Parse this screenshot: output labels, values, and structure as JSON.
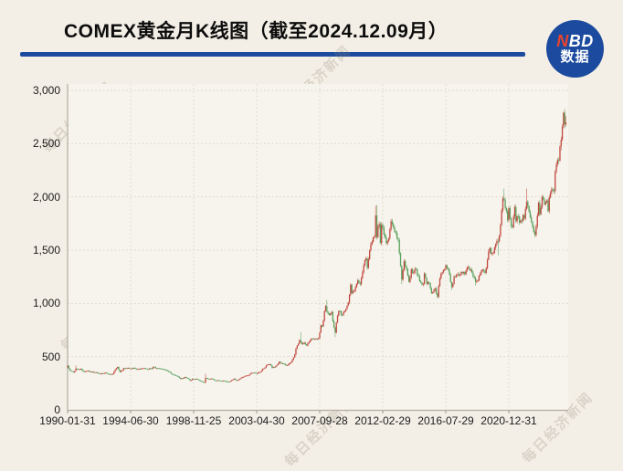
{
  "page": {
    "background": "#f3efe6",
    "plot_background": "#f7f4ed"
  },
  "header": {
    "title": "COMEX黄金月K线图（截至2024.12.09月）",
    "underline_color": "#1b4a9e",
    "logo": {
      "n": "N",
      "bd": "BD",
      "line2": "数据",
      "bg_color": "#1b4a9e",
      "n_color": "#e8442e",
      "text_color": "#ffffff"
    }
  },
  "watermark": {
    "text": "每日经济新闻"
  },
  "chart_data": {
    "type": "candlestick",
    "title": "COMEX黄金月K线图（截至2024.12.09月）",
    "interval": "monthly",
    "start_month": "1990-01",
    "end_month": "2024-12",
    "ylim": [
      0,
      3000
    ],
    "grid": "dotted",
    "up_color": "#c0473d",
    "down_color": "#58a05c",
    "grid_color": "#d8d3c6",
    "axis_color": "#b3ada0",
    "y_ticks": [
      0,
      500,
      1000,
      1500,
      2000,
      2500,
      3000
    ],
    "y_tick_labels": [
      "0",
      "500",
      "1,000",
      "1,500",
      "2,000",
      "2,500",
      "3,000"
    ],
    "x_tick_labels": [
      "1990-01-31",
      "1994-06-30",
      "1998-11-25",
      "2003-04-30",
      "2007-09-28",
      "2012-02-29",
      "2016-07-29",
      "2020-12-31"
    ],
    "x_tick_months": [
      "1990-01",
      "1994-06",
      "1998-11",
      "2003-04",
      "2007-09",
      "2012-02",
      "2016-07",
      "2020-12"
    ],
    "monthly_close_anchors": [
      [
        "1990-01",
        415
      ],
      [
        "1990-03",
        369
      ],
      [
        "1990-06",
        352
      ],
      [
        "1990-08",
        388
      ],
      [
        "1990-10",
        381
      ],
      [
        "1990-12",
        386
      ],
      [
        "1991-03",
        356
      ],
      [
        "1991-06",
        368
      ],
      [
        "1991-09",
        354
      ],
      [
        "1991-12",
        353
      ],
      [
        "1992-03",
        342
      ],
      [
        "1992-06",
        343
      ],
      [
        "1992-09",
        349
      ],
      [
        "1992-12",
        333
      ],
      [
        "1993-03",
        337
      ],
      [
        "1993-05",
        378
      ],
      [
        "1993-07",
        403
      ],
      [
        "1993-09",
        355
      ],
      [
        "1993-11",
        370
      ],
      [
        "1993-12",
        391
      ],
      [
        "1994-03",
        392
      ],
      [
        "1994-06",
        388
      ],
      [
        "1994-09",
        394
      ],
      [
        "1994-12",
        383
      ],
      [
        "1995-04",
        390
      ],
      [
        "1995-08",
        382
      ],
      [
        "1995-12",
        387
      ],
      [
        "1996-01",
        405
      ],
      [
        "1996-04",
        391
      ],
      [
        "1996-07",
        387
      ],
      [
        "1996-10",
        379
      ],
      [
        "1996-12",
        369
      ],
      [
        "1997-02",
        359
      ],
      [
        "1997-04",
        340
      ],
      [
        "1997-07",
        326
      ],
      [
        "1997-10",
        311
      ],
      [
        "1997-12",
        290
      ],
      [
        "1998-04",
        308
      ],
      [
        "1998-06",
        296
      ],
      [
        "1998-08",
        273
      ],
      [
        "1998-10",
        292
      ],
      [
        "1998-12",
        288
      ],
      [
        "1999-02",
        287
      ],
      [
        "1999-05",
        268
      ],
      [
        "1999-08",
        255
      ],
      [
        "1999-09",
        299
      ],
      [
        "1999-11",
        291
      ],
      [
        "1999-12",
        288
      ],
      [
        "2000-02",
        294
      ],
      [
        "2000-05",
        275
      ],
      [
        "2000-08",
        277
      ],
      [
        "2000-11",
        269
      ],
      [
        "2000-12",
        274
      ],
      [
        "2001-02",
        266
      ],
      [
        "2001-04",
        264
      ],
      [
        "2001-06",
        270
      ],
      [
        "2001-09",
        293
      ],
      [
        "2001-11",
        275
      ],
      [
        "2001-12",
        279
      ],
      [
        "2002-03",
        302
      ],
      [
        "2002-06",
        318
      ],
      [
        "2002-09",
        323
      ],
      [
        "2002-12",
        348
      ],
      [
        "2003-02",
        350
      ],
      [
        "2003-04",
        339
      ],
      [
        "2003-07",
        355
      ],
      [
        "2003-09",
        386
      ],
      [
        "2003-11",
        398
      ],
      [
        "2003-12",
        416
      ],
      [
        "2004-03",
        428
      ],
      [
        "2004-05",
        394
      ],
      [
        "2004-08",
        410
      ],
      [
        "2004-11",
        453
      ],
      [
        "2004-12",
        438
      ],
      [
        "2005-02",
        435
      ],
      [
        "2005-05",
        417
      ],
      [
        "2005-08",
        437
      ],
      [
        "2005-10",
        470
      ],
      [
        "2005-12",
        519
      ],
      [
        "2006-01",
        575
      ],
      [
        "2006-04",
        654
      ],
      [
        "2006-06",
        616
      ],
      [
        "2006-08",
        633
      ],
      [
        "2006-10",
        604
      ],
      [
        "2006-12",
        638
      ],
      [
        "2007-02",
        669
      ],
      [
        "2007-05",
        666
      ],
      [
        "2007-08",
        672
      ],
      [
        "2007-10",
        795
      ],
      [
        "2007-11",
        783
      ],
      [
        "2007-12",
        838
      ],
      [
        "2008-01",
        928
      ],
      [
        "2008-02",
        975
      ],
      [
        "2008-03",
        922
      ],
      [
        "2008-05",
        891
      ],
      [
        "2008-07",
        918
      ],
      [
        "2008-08",
        833
      ],
      [
        "2008-10",
        724
      ],
      [
        "2008-11",
        819
      ],
      [
        "2008-12",
        884
      ],
      [
        "2009-01",
        928
      ],
      [
        "2009-04",
        891
      ],
      [
        "2009-06",
        927
      ],
      [
        "2009-09",
        1008
      ],
      [
        "2009-11",
        1175
      ],
      [
        "2009-12",
        1096
      ],
      [
        "2010-02",
        1118
      ],
      [
        "2010-05",
        1215
      ],
      [
        "2010-07",
        1181
      ],
      [
        "2010-10",
        1357
      ],
      [
        "2010-12",
        1421
      ],
      [
        "2011-01",
        1333
      ],
      [
        "2011-04",
        1556
      ],
      [
        "2011-07",
        1628
      ],
      [
        "2011-08",
        1826
      ],
      [
        "2011-09",
        1622
      ],
      [
        "2011-10",
        1722
      ],
      [
        "2011-11",
        1745
      ],
      [
        "2011-12",
        1566
      ],
      [
        "2012-01",
        1737
      ],
      [
        "2012-02",
        1711
      ],
      [
        "2012-05",
        1564
      ],
      [
        "2012-07",
        1610
      ],
      [
        "2012-09",
        1771
      ],
      [
        "2012-11",
        1712
      ],
      [
        "2012-12",
        1676
      ],
      [
        "2013-01",
        1662
      ],
      [
        "2013-03",
        1595
      ],
      [
        "2013-04",
        1472
      ],
      [
        "2013-06",
        1224
      ],
      [
        "2013-08",
        1396
      ],
      [
        "2013-10",
        1323
      ],
      [
        "2013-12",
        1202
      ],
      [
        "2014-02",
        1321
      ],
      [
        "2014-03",
        1284
      ],
      [
        "2014-06",
        1322
      ],
      [
        "2014-09",
        1209
      ],
      [
        "2014-11",
        1176
      ],
      [
        "2014-12",
        1184
      ],
      [
        "2015-01",
        1279
      ],
      [
        "2015-03",
        1183
      ],
      [
        "2015-05",
        1189
      ],
      [
        "2015-07",
        1095
      ],
      [
        "2015-10",
        1141
      ],
      [
        "2015-12",
        1060
      ],
      [
        "2016-02",
        1234
      ],
      [
        "2016-04",
        1290
      ],
      [
        "2016-07",
        1357
      ],
      [
        "2016-09",
        1317
      ],
      [
        "2016-10",
        1273
      ],
      [
        "2016-12",
        1152
      ],
      [
        "2017-02",
        1251
      ],
      [
        "2017-04",
        1268
      ],
      [
        "2017-07",
        1267
      ],
      [
        "2017-09",
        1285
      ],
      [
        "2017-11",
        1273
      ],
      [
        "2017-12",
        1309
      ],
      [
        "2018-01",
        1339
      ],
      [
        "2018-04",
        1316
      ],
      [
        "2018-06",
        1251
      ],
      [
        "2018-08",
        1202
      ],
      [
        "2018-10",
        1215
      ],
      [
        "2018-12",
        1281
      ],
      [
        "2019-02",
        1313
      ],
      [
        "2019-04",
        1286
      ],
      [
        "2019-06",
        1410
      ],
      [
        "2019-08",
        1520
      ],
      [
        "2019-09",
        1466
      ],
      [
        "2019-11",
        1473
      ],
      [
        "2019-12",
        1523
      ],
      [
        "2020-02",
        1587
      ],
      [
        "2020-03",
        1583
      ],
      [
        "2020-05",
        1737
      ],
      [
        "2020-07",
        1986
      ],
      [
        "2020-08",
        1974
      ],
      [
        "2020-09",
        1896
      ],
      [
        "2020-11",
        1781
      ],
      [
        "2020-12",
        1895
      ],
      [
        "2021-02",
        1729
      ],
      [
        "2021-03",
        1714
      ],
      [
        "2021-05",
        1905
      ],
      [
        "2021-06",
        1772
      ],
      [
        "2021-08",
        1816
      ],
      [
        "2021-09",
        1757
      ],
      [
        "2021-11",
        1775
      ],
      [
        "2021-12",
        1829
      ],
      [
        "2022-01",
        1797
      ],
      [
        "2022-03",
        1954
      ],
      [
        "2022-04",
        1912
      ],
      [
        "2022-06",
        1807
      ],
      [
        "2022-07",
        1766
      ],
      [
        "2022-09",
        1672
      ],
      [
        "2022-10",
        1641
      ],
      [
        "2022-12",
        1826
      ],
      [
        "2023-01",
        1945
      ],
      [
        "2023-02",
        1837
      ],
      [
        "2023-04",
        1999
      ],
      [
        "2023-06",
        1929
      ],
      [
        "2023-08",
        1966
      ],
      [
        "2023-09",
        1866
      ],
      [
        "2023-10",
        1994
      ],
      [
        "2023-11",
        2038
      ],
      [
        "2023-12",
        2072
      ],
      [
        "2024-01",
        2067
      ],
      [
        "2024-02",
        2054
      ],
      [
        "2024-03",
        2238
      ],
      [
        "2024-04",
        2303
      ],
      [
        "2024-05",
        2346
      ],
      [
        "2024-06",
        2340
      ],
      [
        "2024-07",
        2473
      ],
      [
        "2024-08",
        2536
      ],
      [
        "2024-09",
        2660
      ],
      [
        "2024-10",
        2790
      ],
      [
        "2024-11",
        2681
      ],
      [
        "2024-12",
        2700
      ]
    ],
    "notable_extremes": {
      "1990-08": {
        "high": 417
      },
      "1999-09": {
        "high": 339
      },
      "2001-04": {
        "low": 256
      },
      "2006-05": {
        "high": 730
      },
      "2008-03": {
        "high": 1033
      },
      "2008-10": {
        "low": 683
      },
      "2011-08": {
        "high": 1917
      },
      "2011-09": {
        "high": 1923
      },
      "2013-06": {
        "low": 1181
      },
      "2015-12": {
        "low": 1046
      },
      "2016-12": {
        "low": 1124
      },
      "2018-08": {
        "low": 1167
      },
      "2020-03": {
        "low": 1451
      },
      "2020-08": {
        "high": 2078
      },
      "2022-03": {
        "high": 2079
      },
      "2022-10": {
        "low": 1621
      },
      "2024-10": {
        "high": 2801
      },
      "2024-12": {
        "high": 2761
      }
    }
  }
}
